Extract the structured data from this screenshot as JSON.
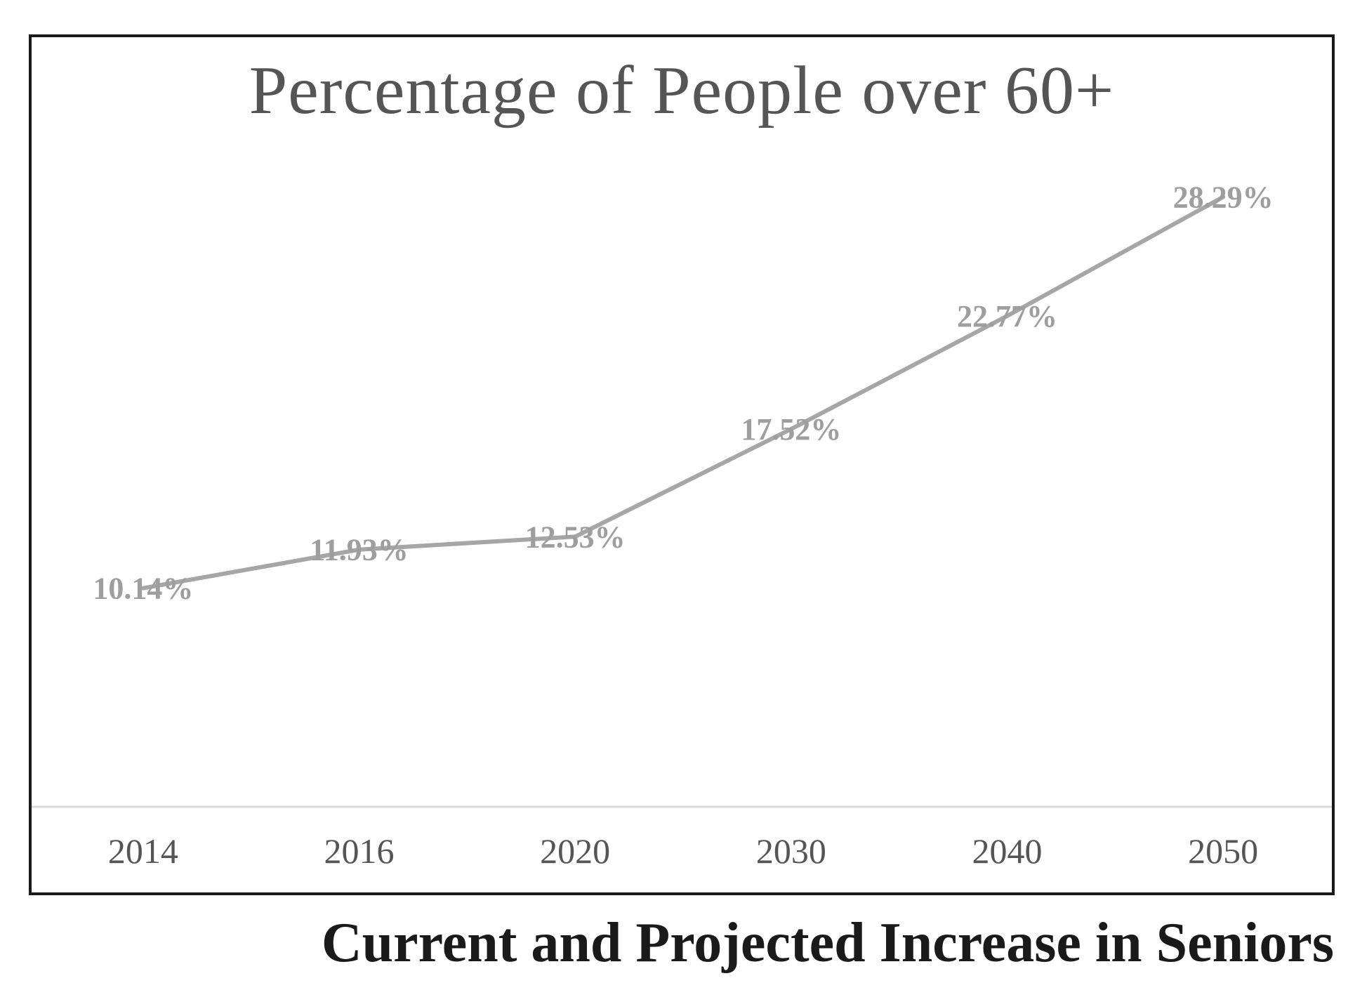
{
  "chart_data": {
    "type": "line",
    "title": "Percentage of People over 60+",
    "categories": [
      "2014",
      "2016",
      "2020",
      "2030",
      "2040",
      "2050"
    ],
    "series": [
      {
        "values": [
          10.14,
          11.93,
          12.53,
          17.52,
          22.77,
          28.29
        ],
        "data_labels": [
          "10.14%",
          "11.93%",
          "12.53%",
          "17.52%",
          "22.77%",
          "28.29%"
        ],
        "color": "#a6a6a6"
      }
    ],
    "ylim": [
      0,
      30
    ],
    "grid": false,
    "legend": "none",
    "y_axis_visible": false
  },
  "caption": "Current and Projected Increase in Seniors",
  "colors": {
    "frame": "#1a1a1a",
    "line": "#a6a6a6",
    "data_label": "#9e9e9e",
    "axis_line": "#d9d9d9",
    "text": "#555555"
  }
}
